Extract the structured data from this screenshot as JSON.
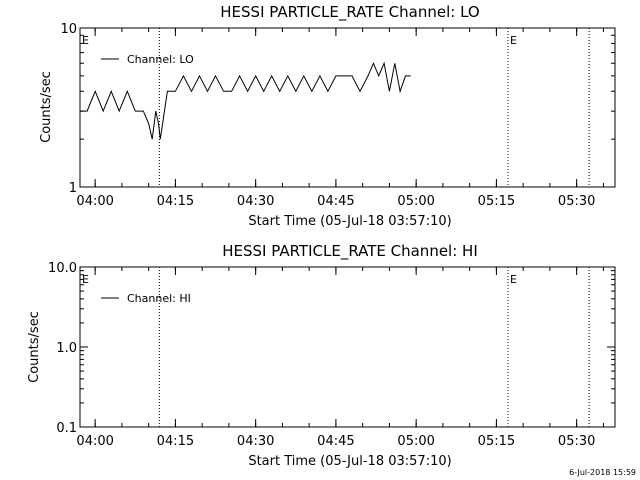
{
  "footer": {
    "timestamp": "6-Jul-2018 15:59"
  },
  "chart_data": [
    {
      "type": "line",
      "title": "HESSI PARTICLE_RATE Channel: LO",
      "xlabel": "Start Time (05-Jul-18 03:57:10)",
      "ylabel": "Counts/sec",
      "yscale": "log",
      "ylim": [
        1,
        10
      ],
      "ytick_labels": [
        "1",
        "10"
      ],
      "xlim": [
        "03:57:10",
        "05:37:10"
      ],
      "xtick_labels": [
        "04:00",
        "04:15",
        "04:30",
        "04:45",
        "05:00",
        "05:15",
        "05:30"
      ],
      "legend": {
        "position": "top-left",
        "entries": [
          "Channel: LO"
        ]
      },
      "markers": [
        {
          "time": "03:57:10",
          "label": "E"
        },
        {
          "time": "05:17:10",
          "label": "E"
        }
      ],
      "vlines": [
        "04:12:00",
        "05:17:10",
        "05:32:20"
      ],
      "series": [
        {
          "name": "Channel: LO",
          "x": [
            "03:57:10",
            "03:58:30",
            "04:00:00",
            "04:01:30",
            "04:03:00",
            "04:04:30",
            "04:06:00",
            "04:07:30",
            "04:09:00",
            "04:10:00",
            "04:10:40",
            "04:11:20",
            "04:11:50",
            "04:12:10",
            "04:13:30",
            "04:15:00",
            "04:16:30",
            "04:18:00",
            "04:19:30",
            "04:21:00",
            "04:22:30",
            "04:24:00",
            "04:25:30",
            "04:27:00",
            "04:28:30",
            "04:30:00",
            "04:31:30",
            "04:33:00",
            "04:34:30",
            "04:36:00",
            "04:37:30",
            "04:39:00",
            "04:40:30",
            "04:42:00",
            "04:43:30",
            "04:45:00",
            "04:46:30",
            "04:48:00",
            "04:49:30",
            "04:51:00",
            "04:52:00",
            "04:53:00",
            "04:54:00",
            "04:55:00",
            "04:56:00",
            "04:57:00",
            "04:58:00",
            "04:59:00"
          ],
          "y": [
            3,
            3,
            4,
            3,
            4,
            3,
            4,
            3,
            3,
            2.5,
            2,
            3,
            2.5,
            2,
            4,
            4,
            5,
            4,
            5,
            4,
            5,
            4,
            4,
            5,
            4,
            5,
            4,
            5,
            4,
            5,
            4,
            5,
            4,
            5,
            4,
            5,
            5,
            5,
            4,
            5,
            6,
            5,
            6,
            4,
            6,
            4,
            5,
            5
          ]
        }
      ]
    },
    {
      "type": "line",
      "title": "HESSI PARTICLE_RATE Channel: HI",
      "xlabel": "Start Time (05-Jul-18 03:57:10)",
      "ylabel": "Counts/sec",
      "yscale": "log",
      "ylim": [
        0.1,
        10.0
      ],
      "ytick_labels": [
        "0.1",
        "1.0",
        "10.0"
      ],
      "xlim": [
        "03:57:10",
        "05:37:10"
      ],
      "xtick_labels": [
        "04:00",
        "04:15",
        "04:30",
        "04:45",
        "05:00",
        "05:15",
        "05:30"
      ],
      "legend": {
        "position": "top-left",
        "entries": [
          "Channel: HI"
        ]
      },
      "markers": [
        {
          "time": "03:57:10",
          "label": "E"
        },
        {
          "time": "05:17:10",
          "label": "E"
        }
      ],
      "vlines": [
        "04:12:00",
        "05:17:10",
        "05:32:20"
      ],
      "series": [
        {
          "name": "Channel: HI",
          "x": [],
          "y": []
        }
      ]
    }
  ]
}
